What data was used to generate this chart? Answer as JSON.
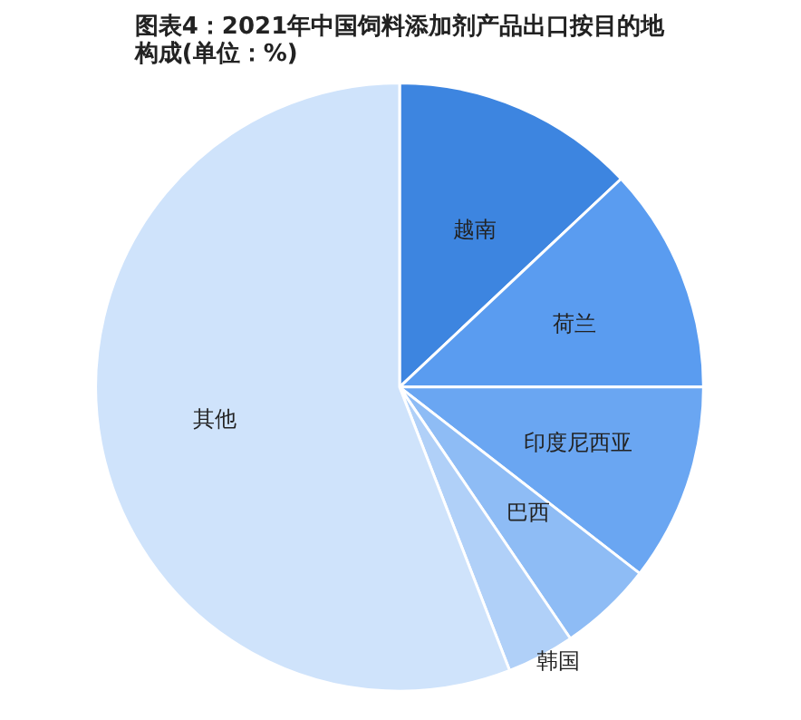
{
  "chart_data": {
    "type": "pie",
    "title": "图表4：2021年中国饲料添加剂产品出口按目的地构成(单位：%)",
    "categories": [
      "越南",
      "荷兰",
      "印度尼西亚",
      "巴西",
      "韩国",
      "其他"
    ],
    "values": [
      13.0,
      12.0,
      10.5,
      5.0,
      3.6,
      55.9
    ],
    "colors": [
      "#3d85e0",
      "#5a9cf0",
      "#6aa6f2",
      "#8ebcf5",
      "#b0d0f8",
      "#cfe3fb"
    ]
  }
}
